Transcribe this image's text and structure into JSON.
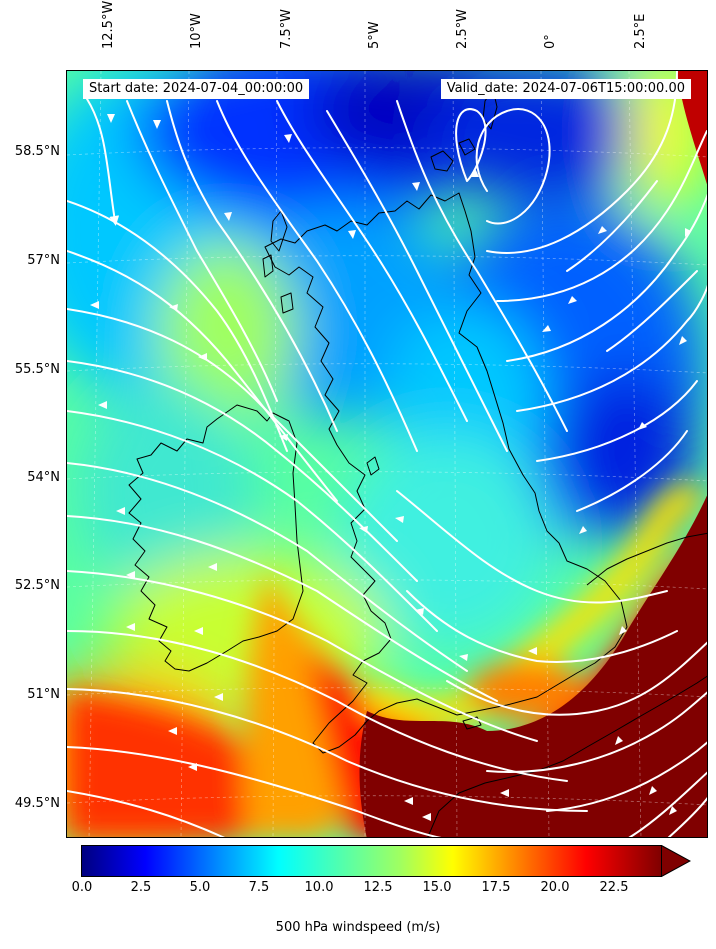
{
  "header": {
    "start_date": "Start date: 2024-07-04_00:00:00",
    "valid_date": "Valid_date: 2024-07-06T15:00:00.00"
  },
  "axes": {
    "lon_labels": [
      "12.5°W",
      "10°W",
      "7.5°W",
      "5°W",
      "2.5°W",
      "0°",
      "2.5°E"
    ],
    "lat_labels": [
      "58.5°N",
      "57°N",
      "55.5°N",
      "54°N",
      "52.5°N",
      "51°N",
      "49.5°N"
    ]
  },
  "colorbar": {
    "label": "500 hPa windspeed (m/s)",
    "ticks": [
      "0.0",
      "2.5",
      "5.0",
      "7.5",
      "10.0",
      "12.5",
      "15.0",
      "17.5",
      "20.0",
      "22.5"
    ],
    "min": 0,
    "max": 25,
    "extend": "max",
    "colormap": "jet"
  },
  "colors": {
    "streamline": "#ffffff",
    "coastline": "#000000",
    "extreme": "#800000"
  }
}
